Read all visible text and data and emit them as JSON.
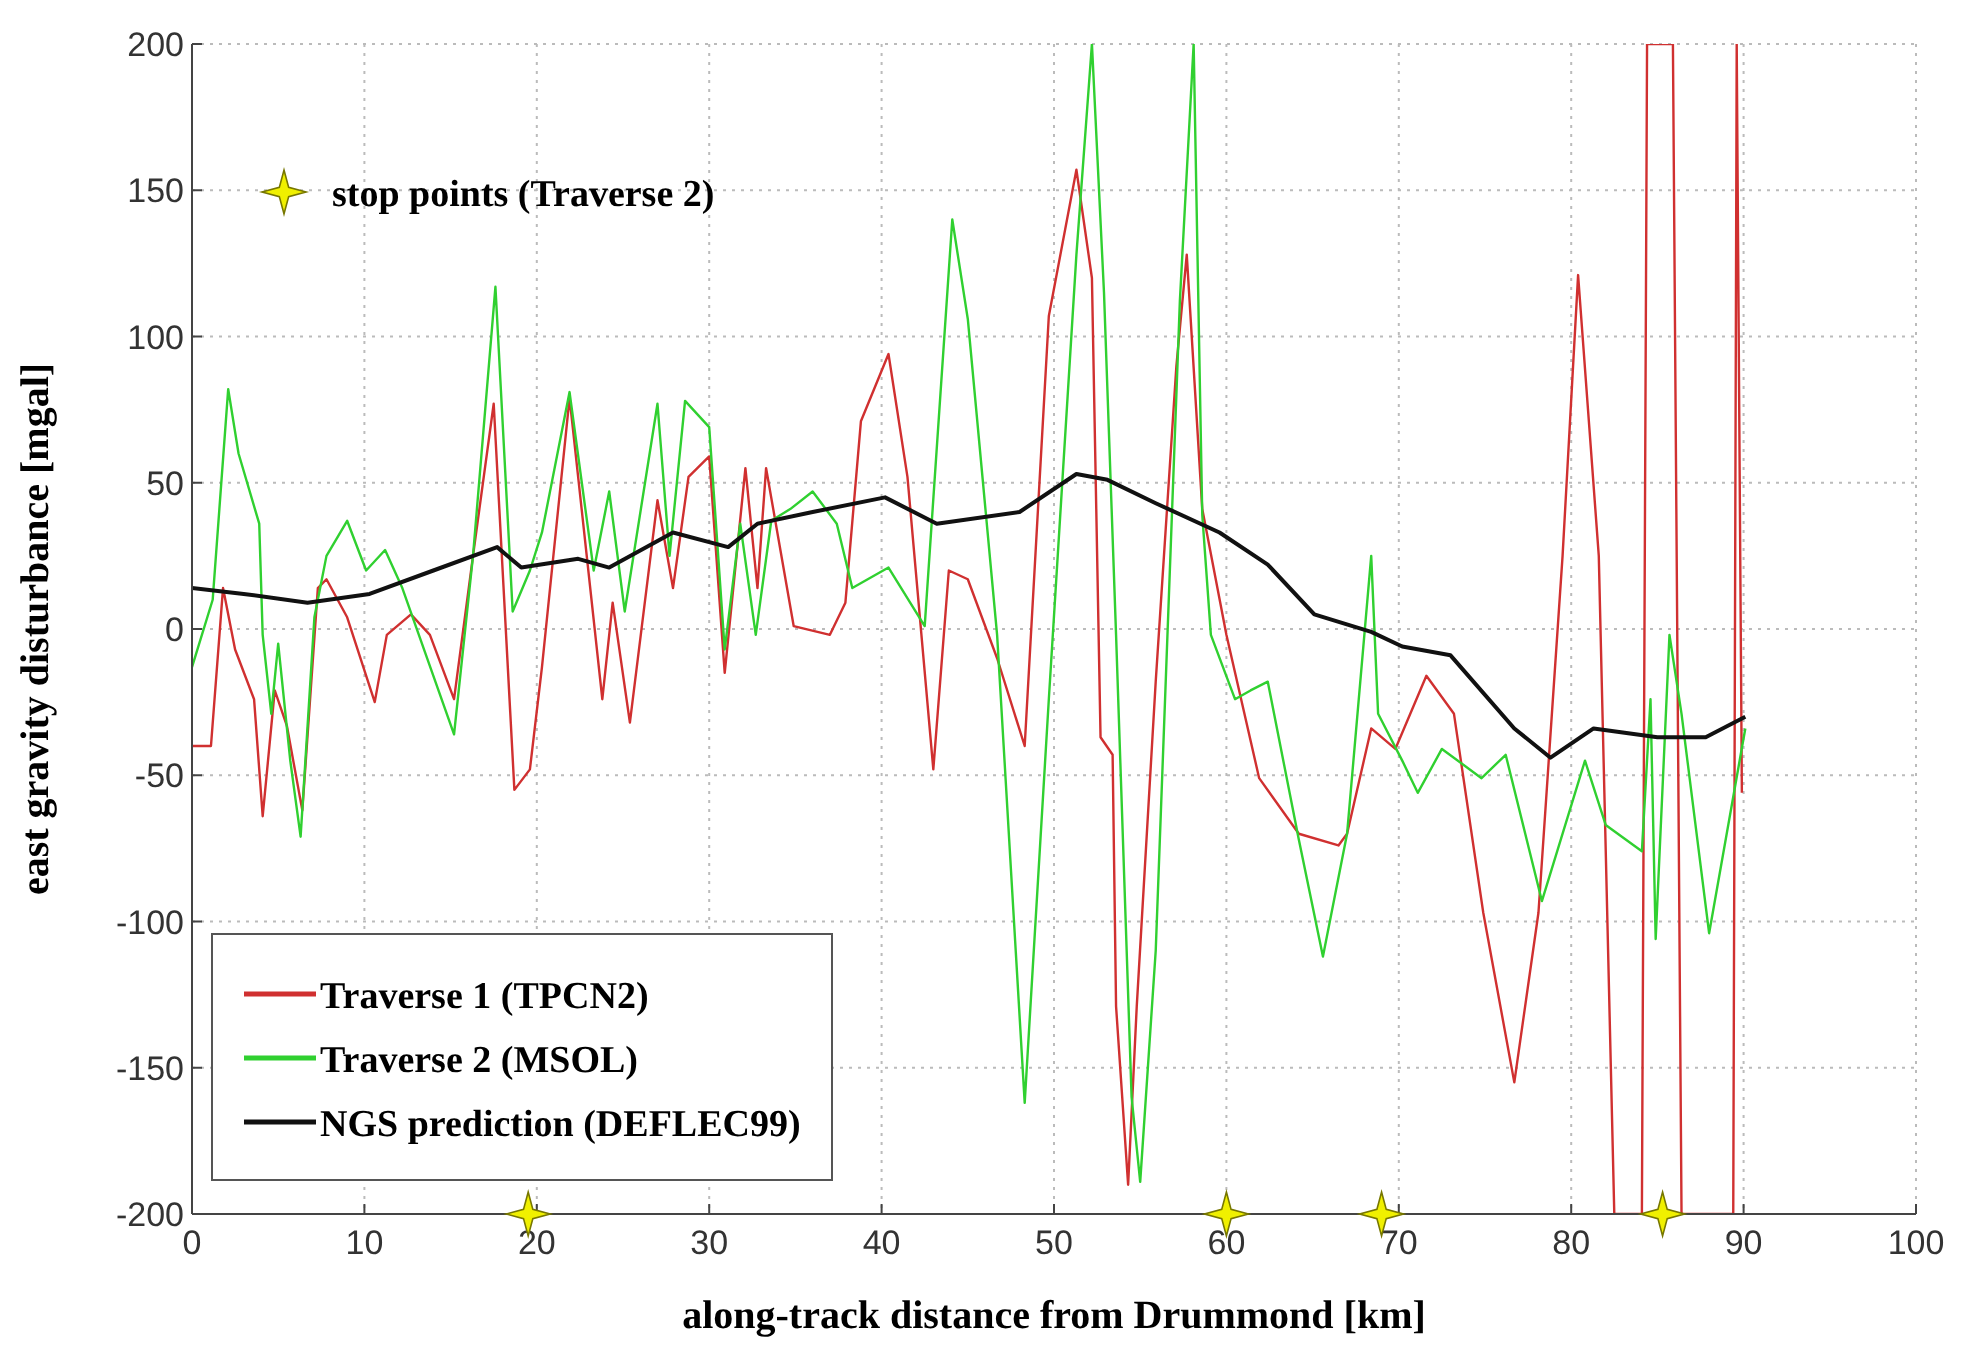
{
  "chart_data": {
    "type": "line",
    "xlabel": "along-track distance from Drummond [km]",
    "ylabel": "east gravity disturbance [mgal]",
    "xlim": [
      0,
      100
    ],
    "ylim": [
      -200,
      200
    ],
    "xticks": [
      0,
      10,
      20,
      30,
      40,
      50,
      60,
      70,
      80,
      90,
      100
    ],
    "yticks": [
      -200,
      -150,
      -100,
      -50,
      0,
      50,
      100,
      150,
      200
    ],
    "grid": true,
    "legend": "bottom left",
    "line_style": "solid",
    "series": [
      {
        "name": "Traverse 1 (TPCN2)",
        "color": "#d03030",
        "x": [
          0,
          1.1,
          1.8,
          2.5,
          3.6,
          4.1,
          4.8,
          5.5,
          6.4,
          7.3,
          7.8,
          9,
          10.6,
          11.3,
          12.7,
          13.8,
          15.2,
          16.3,
          17.5,
          18.7,
          19.6,
          20.3,
          21.9,
          23.8,
          24.4,
          25.4,
          27,
          27.9,
          28.8,
          30,
          30.9,
          32.1,
          32.8,
          33.3,
          34.9,
          37,
          37.9,
          38.8,
          40.4,
          41.5,
          43,
          43.9,
          45,
          46.7,
          48.3,
          49.7,
          51.3,
          52.2,
          52.7,
          53.4,
          53.6,
          54.3,
          54.8,
          55.9,
          57.1,
          57.7,
          58.6,
          60,
          61.9,
          64.2,
          66.5,
          67,
          68.4,
          69.8,
          71.6,
          73.2,
          74.9,
          76.7,
          78.1,
          79.5,
          80.4,
          81.6,
          82.5,
          84.1,
          84.4,
          85.9,
          86.4,
          89.4,
          89.6,
          89.9
        ],
        "values": [
          -40,
          -40,
          14,
          -7,
          -24,
          -64,
          -21,
          -33,
          -62,
          14,
          17,
          4,
          -25,
          -2,
          5,
          -2,
          -24,
          25,
          77,
          -55,
          -48,
          -13,
          79,
          -24,
          9,
          -32,
          44,
          14,
          52,
          59,
          -15,
          55,
          14,
          55,
          1,
          -2,
          9,
          71,
          94,
          52,
          -48,
          20,
          17,
          -10,
          -40,
          107,
          157,
          120,
          -37,
          -43,
          -129,
          -190,
          -129,
          -18,
          90,
          128,
          41,
          -2,
          -51,
          -70,
          -74,
          -70,
          -34,
          -41,
          -16,
          -29,
          -97,
          -155,
          -97,
          25,
          121,
          25,
          -200,
          -200,
          200,
          200,
          -200,
          -200,
          200,
          -56
        ]
      },
      {
        "name": "Traverse 2 (MSOL)",
        "color": "#30d030",
        "x": [
          0,
          1.2,
          2.1,
          2.7,
          3.9,
          4.1,
          4.6,
          5,
          5.7,
          6.3,
          7.1,
          7.8,
          9,
          10.1,
          11.2,
          12.2,
          15.2,
          16.3,
          17.6,
          18.6,
          19.6,
          20.3,
          21.9,
          23.3,
          24.2,
          25.1,
          27,
          27.7,
          28.6,
          30,
          30.9,
          31.8,
          32.7,
          33.6,
          34.7,
          36,
          37.4,
          38.3,
          40.4,
          42.5,
          44.1,
          45,
          46.7,
          48.3,
          49.7,
          51.3,
          52.2,
          52.9,
          53.6,
          54.5,
          55,
          55.9,
          57.3,
          58.1,
          58.6,
          59.1,
          60.5,
          61.4,
          62.4,
          64.2,
          65.6,
          67,
          68.4,
          68.8,
          70.2,
          71.1,
          72.5,
          74.8,
          76.2,
          78.3,
          80.8,
          82,
          84.1,
          84.6,
          84.9,
          85.7,
          86.4,
          88,
          90.1
        ],
        "values": [
          -13,
          10,
          82,
          60,
          36,
          -2,
          -29,
          -5,
          -45,
          -71,
          4,
          25,
          37,
          20,
          27,
          14,
          -36,
          25,
          117,
          6,
          20,
          33,
          81,
          20,
          47,
          6,
          77,
          25,
          78,
          69,
          -7,
          36,
          -2,
          37,
          41,
          47,
          36,
          14,
          21,
          1,
          140,
          106,
          -2,
          -162,
          -24,
          128,
          200,
          115,
          -2,
          -160,
          -189,
          -110,
          112,
          200,
          39,
          -2,
          -24,
          -21,
          -18,
          -72,
          -112,
          -70,
          25,
          -29,
          -45,
          -56,
          -41,
          -51,
          -43,
          -93,
          -45,
          -67,
          -76,
          -24,
          -106,
          -2,
          -29,
          -104,
          -34
        ]
      },
      {
        "name": "NGS prediction (DEFLEC99)",
        "color": "#111111",
        "x": [
          0,
          3,
          6.7,
          10.3,
          14,
          17.7,
          19.1,
          22.4,
          24.2,
          27.9,
          31.1,
          32.8,
          36,
          40.2,
          43.2,
          48,
          51.3,
          53.1,
          55.9,
          59.6,
          62.4,
          65.1,
          68.4,
          70.2,
          73,
          76.7,
          78.8,
          81.3,
          85,
          87.8,
          90.1
        ],
        "values": [
          14,
          12,
          9,
          12,
          20,
          28,
          21,
          24,
          21,
          33,
          28,
          36,
          40,
          45,
          36,
          40,
          53,
          51,
          43,
          33,
          22,
          5,
          -1,
          -6,
          -9,
          -34,
          -44,
          -34,
          -37,
          -37,
          -30
        ]
      },
      {
        "name": "stop points (Traverse 2)",
        "type": "scatter",
        "marker": "star",
        "color": "#f0f000",
        "x": [
          19.5,
          60,
          69,
          85.3
        ],
        "values": [
          -200,
          -200,
          -200,
          -200
        ]
      }
    ]
  }
}
